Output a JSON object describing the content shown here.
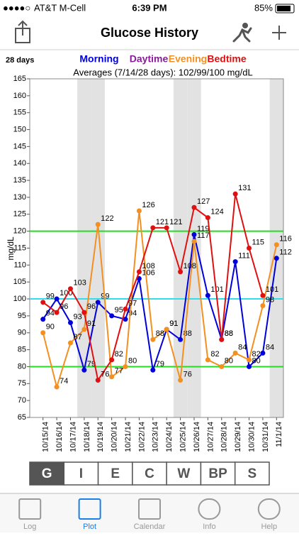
{
  "status_bar": {
    "carrier": "AT&T M-Cell",
    "time": "6:39 PM",
    "battery": "85%"
  },
  "nav": {
    "title": "Glucose History"
  },
  "chart_data": {
    "type": "line",
    "range_label": "28 days",
    "subtitle": "Averages (7/14/28 days): 102/99/100 mg/dL",
    "ylabel": "mg/dL",
    "categories": [
      "10/15/14",
      "10/16/14",
      "10/17/14",
      "10/18/14",
      "10/19/14",
      "10/20/14",
      "10/21/14",
      "10/22/14",
      "10/23/14",
      "10/24/14",
      "10/25/14",
      "10/26/14",
      "10/27/14",
      "10/28/14",
      "10/29/14",
      "10/30/14",
      "10/31/14",
      "11/1/14"
    ],
    "series": [
      {
        "name": "Morning",
        "color": "#0000dd",
        "values": [
          94,
          100,
          93,
          79,
          99,
          95,
          94,
          106,
          79,
          91,
          88,
          119,
          101,
          88,
          111,
          80,
          84,
          112
        ]
      },
      {
        "name": "Daytime",
        "color": "#8b1a9a",
        "values": [
          null,
          null,
          null,
          null,
          null,
          null,
          null,
          null,
          null,
          null,
          null,
          null,
          null,
          null,
          null,
          null,
          null,
          null
        ]
      },
      {
        "name": "Evening",
        "color": "#f39020",
        "values": [
          90,
          74,
          87,
          91,
          122,
          77,
          80,
          126,
          88,
          91,
          76,
          117,
          82,
          80,
          84,
          82,
          98,
          116
        ]
      },
      {
        "name": "Bedtime",
        "color": "#e01010",
        "values": [
          99,
          96,
          103,
          96,
          76,
          82,
          97,
          108,
          121,
          121,
          108,
          127,
          124,
          88,
          131,
          115,
          101,
          null
        ]
      }
    ],
    "ylim": [
      65,
      165
    ],
    "yticks": [
      65,
      70,
      75,
      80,
      85,
      90,
      95,
      100,
      105,
      110,
      115,
      120,
      125,
      130,
      135,
      140,
      145,
      150,
      155,
      160,
      165
    ],
    "weekend_shading": true,
    "reference_lines": [
      {
        "value": 120,
        "color": "#22dd22"
      },
      {
        "value": 100,
        "color": "#33ddee"
      },
      {
        "value": 80,
        "color": "#22dd22"
      }
    ]
  },
  "segments": {
    "items": [
      "G",
      "I",
      "E",
      "C",
      "W",
      "BP",
      "S"
    ],
    "selected": 0
  },
  "tabs": {
    "items": [
      "Log",
      "Plot",
      "Calendar",
      "Info",
      "Help"
    ],
    "selected": 1
  }
}
